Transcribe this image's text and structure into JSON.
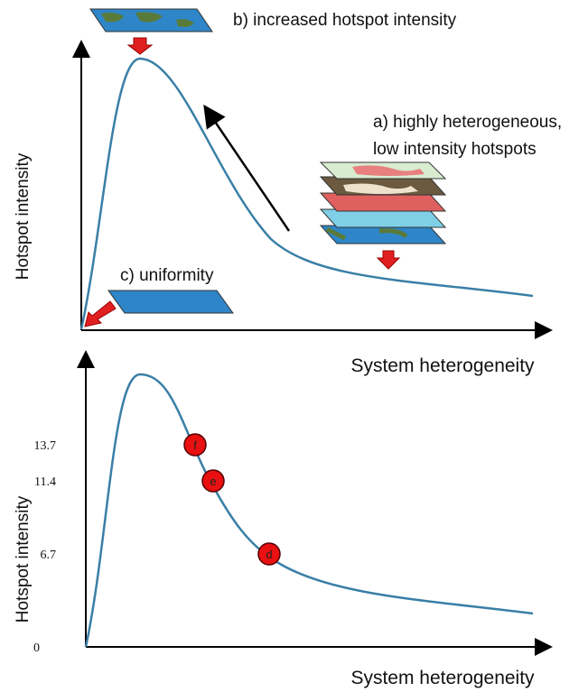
{
  "top": {
    "y_label": "Hotspot intensity",
    "x_label": "System heterogeneity",
    "annotation_b": "b) increased hotspot intensity",
    "annotation_a": [
      "a) highly heterogeneous,",
      "low intensity hotspots"
    ],
    "annotation_c": "c)  uniformity"
  },
  "bottom": {
    "y_label": "Hotspot intensity",
    "x_label": "System heterogeneity",
    "yticks": [
      13.7,
      11.4,
      6.7,
      0
    ],
    "points": [
      "f",
      "e",
      "d"
    ]
  }
}
